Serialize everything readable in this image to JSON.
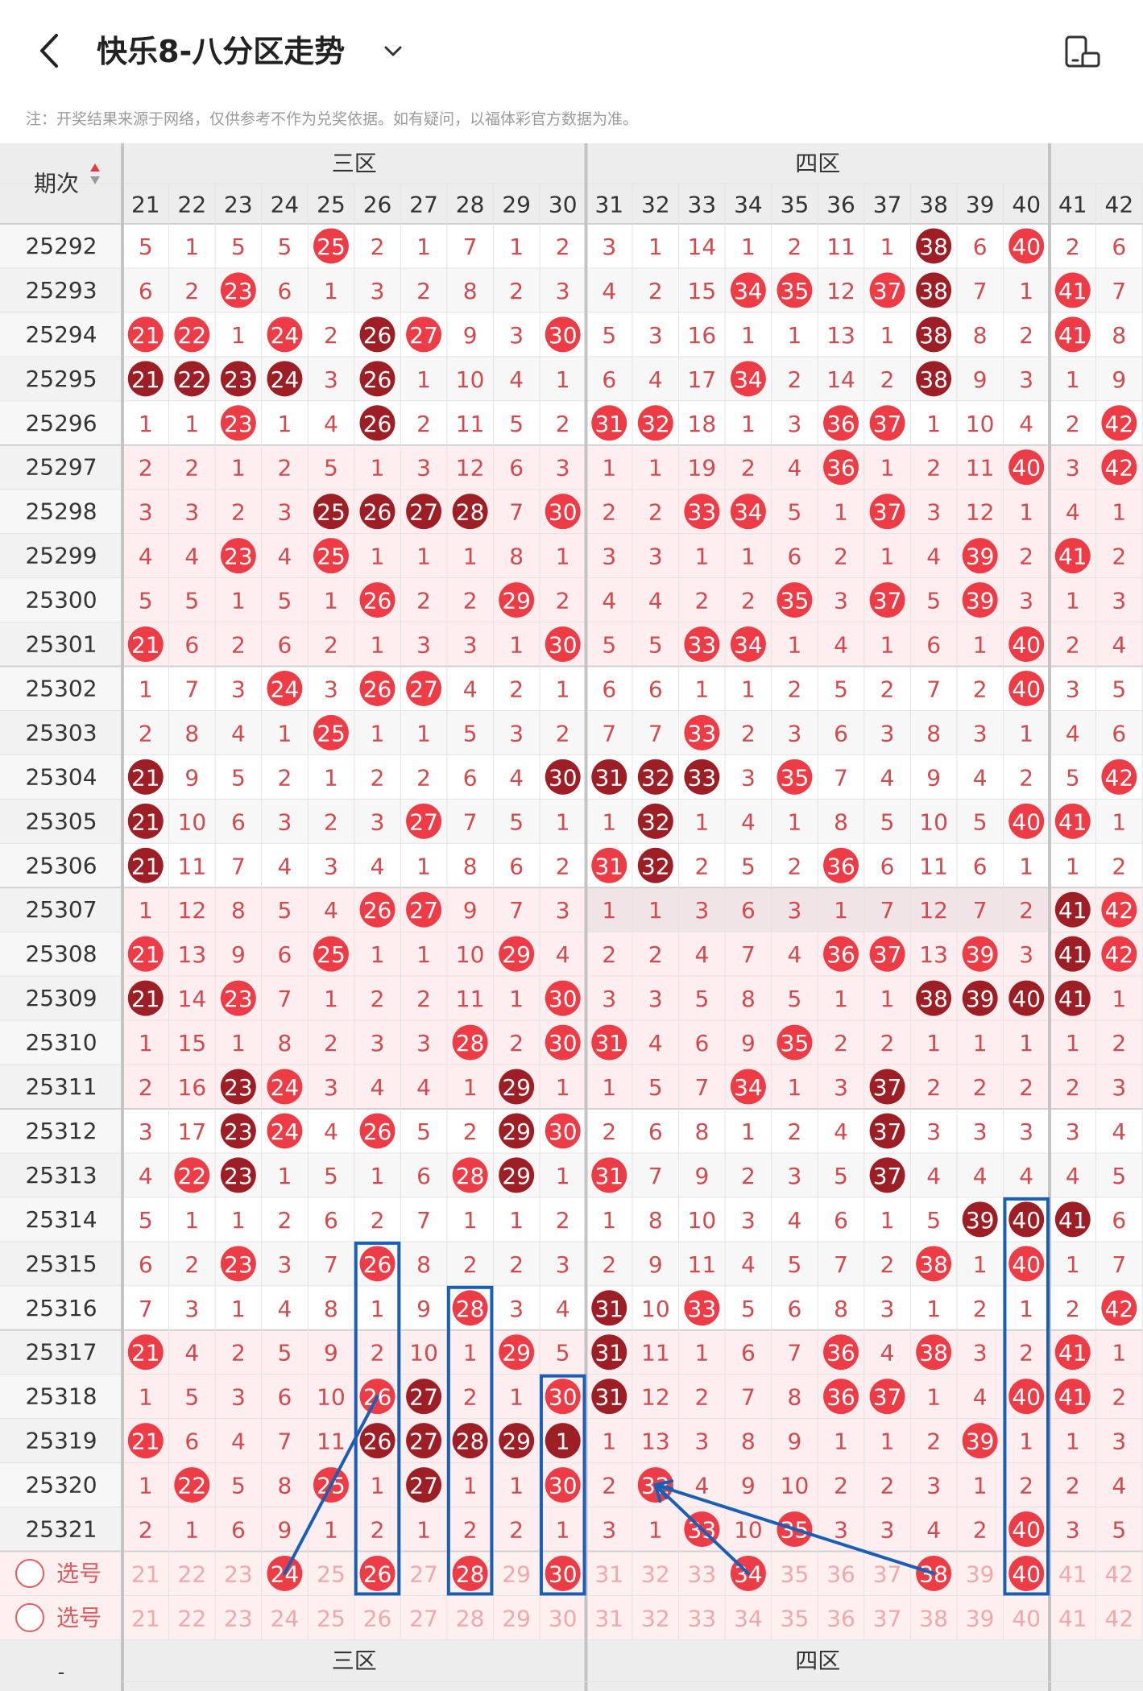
{
  "header": {
    "title": "快乐8-八分区走势",
    "back_icon": "chevron-left-icon",
    "dropdown_icon": "chevron-down-icon",
    "device_icon": "device-toggle-icon"
  },
  "notice": "注：开奖结果来源于网络，仅供参考不作为兑奖依据。如有疑问，以福体彩官方数据为准。",
  "table": {
    "period_header": "期次",
    "sort_icon": "sort-up-down-icon",
    "zones": [
      {
        "label": "三区",
        "from": 21,
        "to": 30
      },
      {
        "label": "四区",
        "from": 31,
        "to": 40
      },
      {
        "label": "",
        "from": 41,
        "to": 42
      }
    ],
    "columns": [
      "21",
      "22",
      "23",
      "24",
      "25",
      "26",
      "27",
      "28",
      "29",
      "30",
      "31",
      "32",
      "33",
      "34",
      "35",
      "36",
      "37",
      "38",
      "39",
      "40",
      "41",
      "42"
    ],
    "rows": [
      {
        "period": "25292",
        "cells": [
          "5",
          "1",
          "5",
          "5",
          "25",
          "2",
          "1",
          "7",
          "1",
          "2",
          "3",
          "1",
          "14",
          "1",
          "2",
          "11",
          "1",
          "38",
          "6",
          "40",
          "2",
          "6"
        ],
        "styles": "0000100000000000020100"
      },
      {
        "period": "25293",
        "cells": [
          "6",
          "2",
          "23",
          "6",
          "1",
          "3",
          "2",
          "8",
          "2",
          "3",
          "4",
          "2",
          "15",
          "34",
          "35",
          "12",
          "37",
          "38",
          "7",
          "1",
          "41",
          "7"
        ],
        "styles": "0010000000000110120010"
      },
      {
        "period": "25294",
        "cells": [
          "21",
          "22",
          "1",
          "24",
          "2",
          "26",
          "27",
          "9",
          "3",
          "30",
          "5",
          "3",
          "16",
          "1",
          "1",
          "13",
          "1",
          "38",
          "8",
          "2",
          "41",
          "8"
        ],
        "styles": "1101021001000000020010"
      },
      {
        "period": "25295",
        "cells": [
          "21",
          "22",
          "23",
          "24",
          "3",
          "26",
          "1",
          "10",
          "4",
          "1",
          "6",
          "4",
          "17",
          "34",
          "2",
          "14",
          "2",
          "38",
          "9",
          "3",
          "1",
          "9"
        ],
        "styles": "2222020000000100020000"
      },
      {
        "period": "25296",
        "cells": [
          "1",
          "1",
          "23",
          "1",
          "4",
          "26",
          "2",
          "11",
          "5",
          "2",
          "31",
          "32",
          "18",
          "1",
          "3",
          "36",
          "37",
          "1",
          "10",
          "4",
          "2",
          "42"
        ],
        "styles": "0010020000110001100001"
      },
      {
        "period": "25297",
        "cells": [
          "2",
          "2",
          "1",
          "2",
          "5",
          "1",
          "3",
          "12",
          "6",
          "3",
          "1",
          "1",
          "19",
          "2",
          "4",
          "36",
          "1",
          "2",
          "11",
          "40",
          "3",
          "42"
        ],
        "styles": "0000000000000001000101"
      },
      {
        "period": "25298",
        "cells": [
          "3",
          "3",
          "2",
          "3",
          "25",
          "26",
          "27",
          "28",
          "7",
          "30",
          "2",
          "2",
          "33",
          "34",
          "5",
          "1",
          "37",
          "3",
          "12",
          "1",
          "4",
          "1"
        ],
        "styles": "0000222201001100100000"
      },
      {
        "period": "25299",
        "cells": [
          "4",
          "4",
          "23",
          "4",
          "25",
          "1",
          "1",
          "1",
          "8",
          "1",
          "3",
          "3",
          "1",
          "1",
          "6",
          "2",
          "1",
          "4",
          "39",
          "2",
          "41",
          "2"
        ],
        "styles": "0010100000000000001010"
      },
      {
        "period": "25300",
        "cells": [
          "5",
          "5",
          "1",
          "5",
          "1",
          "26",
          "2",
          "2",
          "29",
          "2",
          "4",
          "4",
          "2",
          "2",
          "35",
          "3",
          "37",
          "5",
          "39",
          "3",
          "1",
          "3"
        ],
        "styles": "0000010010000010101000"
      },
      {
        "period": "25301",
        "cells": [
          "21",
          "6",
          "2",
          "6",
          "2",
          "1",
          "3",
          "3",
          "1",
          "30",
          "5",
          "5",
          "33",
          "34",
          "1",
          "4",
          "1",
          "6",
          "1",
          "40",
          "2",
          "4"
        ],
        "styles": "1000000001001100000100"
      },
      {
        "period": "25302",
        "cells": [
          "1",
          "7",
          "3",
          "24",
          "3",
          "26",
          "27",
          "4",
          "2",
          "1",
          "6",
          "6",
          "1",
          "1",
          "2",
          "5",
          "2",
          "7",
          "2",
          "40",
          "3",
          "5"
        ],
        "styles": "0001011000000000000100"
      },
      {
        "period": "25303",
        "cells": [
          "2",
          "8",
          "4",
          "1",
          "25",
          "1",
          "1",
          "5",
          "3",
          "2",
          "7",
          "7",
          "33",
          "2",
          "3",
          "6",
          "3",
          "8",
          "3",
          "1",
          "4",
          "6"
        ],
        "styles": "0000100000001000000000"
      },
      {
        "period": "25304",
        "cells": [
          "21",
          "9",
          "5",
          "2",
          "1",
          "2",
          "2",
          "6",
          "4",
          "30",
          "31",
          "32",
          "33",
          "3",
          "35",
          "7",
          "4",
          "9",
          "4",
          "2",
          "5",
          "42"
        ],
        "styles": "2000000002222010000001"
      },
      {
        "period": "25305",
        "cells": [
          "21",
          "10",
          "6",
          "3",
          "2",
          "3",
          "27",
          "7",
          "5",
          "1",
          "1",
          "32",
          "1",
          "4",
          "1",
          "8",
          "5",
          "10",
          "5",
          "40",
          "41",
          "1"
        ],
        "styles": "2000001000020000000110"
      },
      {
        "period": "25306",
        "cells": [
          "21",
          "11",
          "7",
          "4",
          "3",
          "4",
          "1",
          "8",
          "6",
          "2",
          "31",
          "32",
          "2",
          "5",
          "2",
          "36",
          "6",
          "11",
          "6",
          "1",
          "1",
          "2"
        ],
        "styles": "2000000000120001000000"
      },
      {
        "period": "25307",
        "cells": [
          "1",
          "12",
          "8",
          "5",
          "4",
          "26",
          "27",
          "9",
          "7",
          "3",
          "1",
          "1",
          "3",
          "6",
          "3",
          "1",
          "7",
          "12",
          "7",
          "2",
          "41",
          "42"
        ],
        "styles": "0000011000000000000021"
      },
      {
        "period": "25308",
        "cells": [
          "21",
          "13",
          "9",
          "6",
          "25",
          "1",
          "1",
          "10",
          "29",
          "4",
          "2",
          "2",
          "4",
          "7",
          "4",
          "36",
          "37",
          "13",
          "39",
          "3",
          "41",
          "42"
        ],
        "styles": "1000100010000001101021"
      },
      {
        "period": "25309",
        "cells": [
          "21",
          "14",
          "23",
          "7",
          "1",
          "2",
          "2",
          "11",
          "1",
          "30",
          "3",
          "3",
          "5",
          "8",
          "5",
          "1",
          "1",
          "38",
          "39",
          "40",
          "41",
          "1"
        ],
        "styles": "2010000001000000022220"
      },
      {
        "period": "25310",
        "cells": [
          "1",
          "15",
          "1",
          "8",
          "2",
          "3",
          "3",
          "28",
          "2",
          "30",
          "31",
          "4",
          "6",
          "9",
          "35",
          "2",
          "2",
          "1",
          "1",
          "1",
          "1",
          "2"
        ],
        "styles": "0000000101100010000000"
      },
      {
        "period": "25311",
        "cells": [
          "2",
          "16",
          "23",
          "24",
          "3",
          "4",
          "4",
          "1",
          "29",
          "1",
          "1",
          "5",
          "7",
          "34",
          "1",
          "3",
          "37",
          "2",
          "2",
          "2",
          "2",
          "3"
        ],
        "styles": "0021000020000100200000"
      },
      {
        "period": "25312",
        "cells": [
          "3",
          "17",
          "23",
          "24",
          "4",
          "26",
          "5",
          "2",
          "29",
          "30",
          "2",
          "6",
          "8",
          "1",
          "2",
          "4",
          "37",
          "3",
          "3",
          "3",
          "3",
          "4"
        ],
        "styles": "0021010021000000200000"
      },
      {
        "period": "25313",
        "cells": [
          "4",
          "22",
          "23",
          "1",
          "5",
          "1",
          "6",
          "28",
          "29",
          "1",
          "31",
          "7",
          "9",
          "2",
          "3",
          "5",
          "37",
          "4",
          "4",
          "4",
          "4",
          "5"
        ],
        "styles": "0120000120100000200000"
      },
      {
        "period": "25314",
        "cells": [
          "5",
          "1",
          "1",
          "2",
          "6",
          "2",
          "7",
          "1",
          "1",
          "2",
          "1",
          "8",
          "10",
          "3",
          "4",
          "6",
          "1",
          "5",
          "39",
          "40",
          "41",
          "6"
        ],
        "styles": "0000000000000000002220"
      },
      {
        "period": "25315",
        "cells": [
          "6",
          "2",
          "23",
          "3",
          "7",
          "26",
          "8",
          "2",
          "2",
          "3",
          "2",
          "9",
          "11",
          "4",
          "5",
          "7",
          "2",
          "38",
          "1",
          "40",
          "1",
          "7"
        ],
        "styles": "0010010000000000010100"
      },
      {
        "period": "25316",
        "cells": [
          "7",
          "3",
          "1",
          "4",
          "8",
          "1",
          "9",
          "28",
          "3",
          "4",
          "31",
          "10",
          "33",
          "5",
          "6",
          "8",
          "3",
          "1",
          "2",
          "1",
          "2",
          "42"
        ],
        "styles": "0000000100201000000001"
      },
      {
        "period": "25317",
        "cells": [
          "21",
          "4",
          "2",
          "5",
          "9",
          "2",
          "10",
          "1",
          "29",
          "5",
          "31",
          "11",
          "1",
          "6",
          "7",
          "36",
          "4",
          "38",
          "3",
          "2",
          "41",
          "1"
        ],
        "styles": "1000000010200001010010"
      },
      {
        "period": "25318",
        "cells": [
          "1",
          "5",
          "3",
          "6",
          "10",
          "26",
          "27",
          "2",
          "1",
          "30",
          "31",
          "12",
          "2",
          "7",
          "8",
          "36",
          "37",
          "1",
          "4",
          "40",
          "41",
          "2"
        ],
        "styles": "0000012001200001100110"
      },
      {
        "period": "25319",
        "cells": [
          "21",
          "6",
          "4",
          "7",
          "11",
          "26",
          "27",
          "28",
          "29",
          "1",
          "1",
          "13",
          "3",
          "8",
          "9",
          "1",
          "1",
          "2",
          "39",
          "1",
          "1",
          "3"
        ],
        "styles": "1000022222000000001000"
      },
      {
        "period": "25320",
        "cells": [
          "1",
          "22",
          "5",
          "8",
          "25",
          "1",
          "27",
          "1",
          "1",
          "30",
          "2",
          "32",
          "4",
          "9",
          "10",
          "2",
          "2",
          "3",
          "1",
          "2",
          "2",
          "4"
        ],
        "styles": "0100102001010000000000"
      },
      {
        "period": "25321",
        "cells": [
          "2",
          "1",
          "6",
          "9",
          "1",
          "2",
          "1",
          "2",
          "2",
          "1",
          "3",
          "1",
          "33",
          "10",
          "35",
          "3",
          "3",
          "4",
          "2",
          "40",
          "3",
          "5"
        ],
        "styles": "0000000000001010000100"
      }
    ],
    "select_label": "选号",
    "select_rows": [
      {
        "label": "选号",
        "picked": [
          "24",
          "26",
          "28",
          "30",
          "34",
          "38",
          "40"
        ]
      },
      {
        "label": "选号",
        "picked": []
      }
    ],
    "footer_zones": [
      "三区",
      "四区"
    ],
    "footer_period": "-"
  },
  "colors": {
    "ball_light": "#ee3c46",
    "ball_dark": "#9d1f25",
    "miss_text": "#d24a4e",
    "grid_line": "#e3e3e3",
    "zone_divider": "#c4c4c4",
    "header_bg": "#ededed",
    "band_bg": "#ffeef0",
    "select_bg": "#fff0f0",
    "annotation": "#1a5fb6"
  }
}
